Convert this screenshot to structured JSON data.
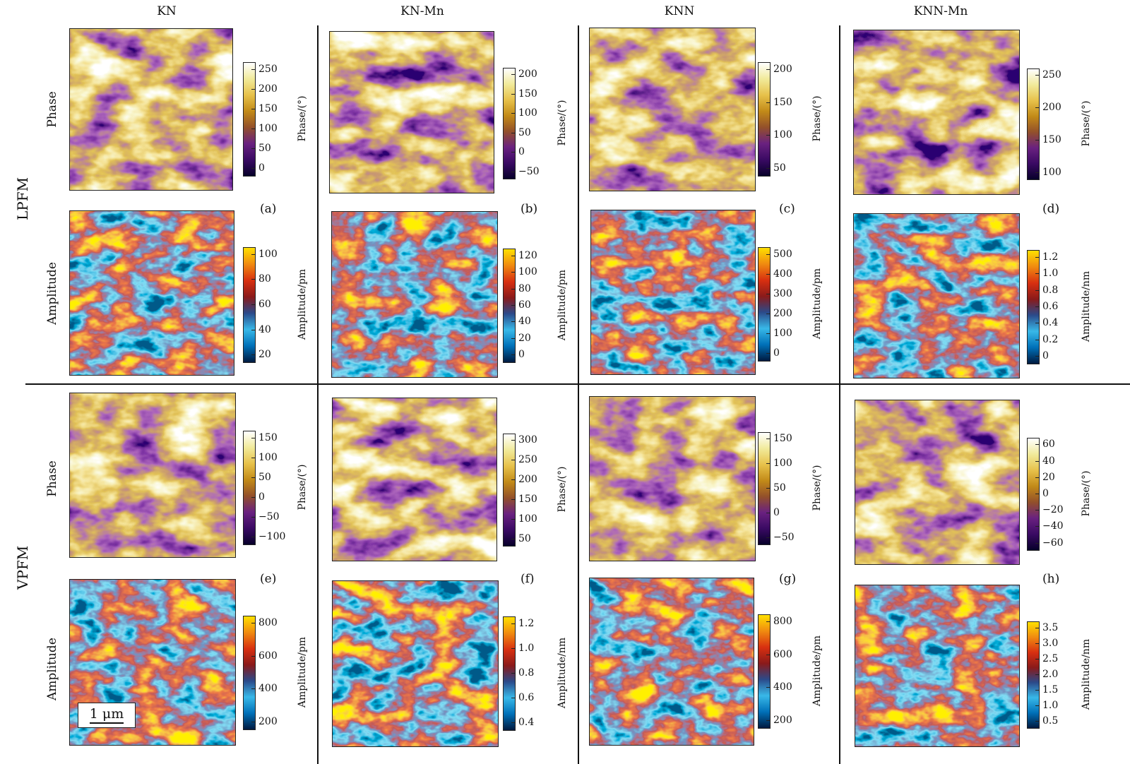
{
  "columns": [
    "KN",
    "KN-Mn",
    "KNN",
    "KNN-Mn"
  ],
  "sections": [
    "LPFM",
    "VPFM"
  ],
  "row_labels": {
    "phase": "Phase",
    "amplitude": "Amplitude"
  },
  "panel_letters": [
    "(a)",
    "(b)",
    "(c)",
    "(d)",
    "(e)",
    "(f)",
    "(g)",
    "(h)"
  ],
  "scale_bar": "1 μm",
  "colormaps": {
    "phase": [
      "#07002a",
      "#3a0a63",
      "#6a2180",
      "#93502a",
      "#c28a18",
      "#e7c14a",
      "#f1ea9a",
      "#ffffff"
    ],
    "amplitude": [
      "#001a40",
      "#0070b8",
      "#38b8e8",
      "#2b4a8a",
      "#8a1a1a",
      "#d83010",
      "#f08a10",
      "#ffe000"
    ]
  },
  "colorbars": {
    "a_phase": {
      "title": "Phase/(°)",
      "ticks": [
        "250",
        "200",
        "150",
        "100",
        "50",
        "0"
      ]
    },
    "a_amp": {
      "title": "Amplitude/pm",
      "ticks": [
        "100",
        "80",
        "60",
        "40",
        "20"
      ]
    },
    "b_phase": {
      "title": "Phase/(°)",
      "ticks": [
        "200",
        "150",
        "100",
        "50",
        "0",
        "−50"
      ]
    },
    "b_amp": {
      "title": "Amplitude/pm",
      "ticks": [
        "120",
        "100",
        "80",
        "60",
        "40",
        "20",
        "0"
      ]
    },
    "c_phase": {
      "title": "Phase/(°)",
      "ticks": [
        "200",
        "150",
        "100",
        "50"
      ]
    },
    "c_amp": {
      "title": "Amplitude/pm",
      "ticks": [
        "500",
        "400",
        "300",
        "200",
        "100",
        "0"
      ]
    },
    "d_phase": {
      "title": "Phase/(°)",
      "ticks": [
        "250",
        "200",
        "150",
        "100"
      ]
    },
    "d_amp": {
      "title": "Amplitude/nm",
      "ticks": [
        "1.2",
        "1.0",
        "0.8",
        "0.6",
        "0.4",
        "0.2",
        "0"
      ]
    },
    "e_phase": {
      "title": "Phase/(°)",
      "ticks": [
        "150",
        "100",
        "50",
        "0",
        "−50",
        "−100"
      ]
    },
    "e_amp": {
      "title": "Amplitude/pm",
      "ticks": [
        "800",
        "600",
        "400",
        "200"
      ]
    },
    "f_phase": {
      "title": "Phase/(°)",
      "ticks": [
        "300",
        "250",
        "200",
        "150",
        "100",
        "50"
      ]
    },
    "f_amp": {
      "title": "Amplitude/nm",
      "ticks": [
        "1.2",
        "1.0",
        "0.8",
        "0.6",
        "0.4"
      ]
    },
    "g_phase": {
      "title": "Phase/(°)",
      "ticks": [
        "150",
        "100",
        "50",
        "0",
        "−50"
      ]
    },
    "g_amp": {
      "title": "Amplitude/pm",
      "ticks": [
        "800",
        "600",
        "400",
        "200"
      ]
    },
    "h_phase": {
      "title": "Phase/(°)",
      "ticks": [
        "60",
        "40",
        "20",
        "0",
        "−20",
        "−40",
        "−60"
      ]
    },
    "h_amp": {
      "title": "Amplitude/nm",
      "ticks": [
        "3.5",
        "3.0",
        "2.5",
        "2.0",
        "1.5",
        "1.0",
        "0.5"
      ]
    }
  }
}
